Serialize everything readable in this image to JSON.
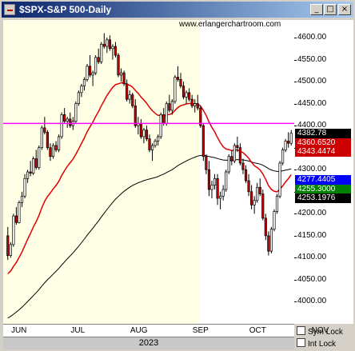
{
  "window": {
    "title": "$SPX-S&P 500-Daily",
    "minimize_glyph": "_",
    "maximize_glyph": "□",
    "close_glyph": "×"
  },
  "watermark": "www.erlangerchartroom.com",
  "colors": {
    "background_past": "#ffffe6",
    "background_recent": "#ffffff",
    "candle_up": "#ffffff",
    "candle_down": "#cc0000",
    "ma_short": "#e00000",
    "ma_long": "#000000",
    "horizontal_line": "#ff00ff"
  },
  "price_tags": [
    {
      "label": "4382.78",
      "price": 4382.78,
      "bg": "#000000"
    },
    {
      "label": "4360.6520",
      "price": 4360.652,
      "bg": "#cc0000"
    },
    {
      "label": "4343.4474",
      "price": 4343.4474,
      "bg": "#cc0000"
    },
    {
      "label": "4277.4405",
      "price": 4277.4405,
      "bg": "#0000ff"
    },
    {
      "label": "4255.3000",
      "price": 4255.3,
      "bg": "#008000"
    },
    {
      "label": "4253.1976",
      "price": 4253.1976,
      "bg": "#000000"
    }
  ],
  "legend_options": [
    {
      "label": "Sym Lock"
    },
    {
      "label": "Int Lock"
    }
  ],
  "chart_data": {
    "type": "candlestick",
    "title": "$SPX-S&P 500-Daily",
    "xlabel": "2023",
    "ylim": [
      3950,
      4640
    ],
    "y_ticks": [
      4000,
      4050,
      4100,
      4150,
      4200,
      4250,
      4300,
      4350,
      4400,
      4450,
      4500,
      4550,
      4600
    ],
    "y_tick_labels": [
      "4000.00",
      "4050.00",
      "4100.00",
      "4150.00",
      "4200.00",
      "4250.00",
      "4300.00",
      "4350.00",
      "4400.00",
      "4450.00",
      "4500.00",
      "4550.00",
      "4600.00"
    ],
    "x_months": [
      {
        "label": "JUN",
        "index": 4
      },
      {
        "label": "JUL",
        "index": 25
      },
      {
        "label": "AUG",
        "index": 46
      },
      {
        "label": "SEP",
        "index": 68
      },
      {
        "label": "OCT",
        "index": 88
      },
      {
        "label": "NOV",
        "index": 110
      }
    ],
    "year_label": "2023",
    "highlight_start_index": 68,
    "horizontal_line": 4405,
    "candles": [
      [
        4150,
        4170,
        4095,
        4105
      ],
      [
        4105,
        4135,
        4100,
        4130
      ],
      [
        4130,
        4200,
        4125,
        4195
      ],
      [
        4195,
        4215,
        4175,
        4180
      ],
      [
        4180,
        4230,
        4178,
        4225
      ],
      [
        4225,
        4250,
        4215,
        4240
      ],
      [
        4240,
        4290,
        4235,
        4280
      ],
      [
        4280,
        4300,
        4270,
        4295
      ],
      [
        4295,
        4320,
        4285,
        4292
      ],
      [
        4292,
        4330,
        4288,
        4325
      ],
      [
        4325,
        4345,
        4300,
        4305
      ],
      [
        4305,
        4355,
        4300,
        4350
      ],
      [
        4350,
        4400,
        4345,
        4395
      ],
      [
        4395,
        4420,
        4380,
        4385
      ],
      [
        4385,
        4390,
        4345,
        4350
      ],
      [
        4350,
        4360,
        4320,
        4330
      ],
      [
        4330,
        4360,
        4325,
        4355
      ],
      [
        4355,
        4365,
        4340,
        4345
      ],
      [
        4345,
        4380,
        4340,
        4375
      ],
      [
        4375,
        4430,
        4370,
        4425
      ],
      [
        4425,
        4440,
        4405,
        4410
      ],
      [
        4410,
        4420,
        4395,
        4415
      ],
      [
        4415,
        4430,
        4395,
        4400
      ],
      [
        4400,
        4420,
        4390,
        4410
      ],
      [
        4410,
        4455,
        4405,
        4450
      ],
      [
        4450,
        4480,
        4445,
        4475
      ],
      [
        4475,
        4495,
        4465,
        4490
      ],
      [
        4490,
        4510,
        4480,
        4505
      ],
      [
        4505,
        4540,
        4500,
        4535
      ],
      [
        4535,
        4560,
        4510,
        4515
      ],
      [
        4515,
        4525,
        4490,
        4520
      ],
      [
        4520,
        4560,
        4515,
        4555
      ],
      [
        4555,
        4575,
        4540,
        4545
      ],
      [
        4545,
        4590,
        4540,
        4585
      ],
      [
        4585,
        4610,
        4575,
        4580
      ],
      [
        4580,
        4600,
        4565,
        4595
      ],
      [
        4595,
        4605,
        4570,
        4575
      ],
      [
        4575,
        4585,
        4550,
        4580
      ],
      [
        4580,
        4590,
        4555,
        4560
      ],
      [
        4560,
        4565,
        4510,
        4515
      ],
      [
        4515,
        4530,
        4500,
        4520
      ],
      [
        4520,
        4525,
        4490,
        4495
      ],
      [
        4495,
        4505,
        4455,
        4460
      ],
      [
        4460,
        4480,
        4450,
        4470
      ],
      [
        4470,
        4475,
        4440,
        4445
      ],
      [
        4445,
        4460,
        4395,
        4400
      ],
      [
        4400,
        4420,
        4380,
        4405
      ],
      [
        4405,
        4415,
        4370,
        4375
      ],
      [
        4375,
        4395,
        4360,
        4390
      ],
      [
        4390,
        4400,
        4365,
        4370
      ],
      [
        4370,
        4380,
        4340,
        4345
      ],
      [
        4345,
        4360,
        4320,
        4355
      ],
      [
        4355,
        4370,
        4350,
        4365
      ],
      [
        4365,
        4380,
        4355,
        4375
      ],
      [
        4375,
        4430,
        4370,
        4425
      ],
      [
        4425,
        4440,
        4400,
        4405
      ],
      [
        4405,
        4455,
        4400,
        4450
      ],
      [
        4450,
        4470,
        4430,
        4435
      ],
      [
        4435,
        4460,
        4425,
        4455
      ],
      [
        4455,
        4515,
        4450,
        4510
      ],
      [
        4510,
        4535,
        4500,
        4505
      ],
      [
        4505,
        4520,
        4485,
        4490
      ],
      [
        4490,
        4500,
        4460,
        4465
      ],
      [
        4465,
        4480,
        4450,
        4475
      ],
      [
        4475,
        4485,
        4455,
        4460
      ],
      [
        4460,
        4470,
        4440,
        4445
      ],
      [
        4445,
        4460,
        4430,
        4450
      ],
      [
        4450,
        4470,
        4435,
        4440
      ],
      [
        4440,
        4445,
        4395,
        4400
      ],
      [
        4400,
        4405,
        4320,
        4330
      ],
      [
        4330,
        4335,
        4290,
        4300
      ],
      [
        4300,
        4320,
        4240,
        4255
      ],
      [
        4255,
        4275,
        4235,
        4265
      ],
      [
        4265,
        4290,
        4255,
        4280
      ],
      [
        4280,
        4290,
        4220,
        4235
      ],
      [
        4235,
        4250,
        4210,
        4240
      ],
      [
        4240,
        4265,
        4230,
        4255
      ],
      [
        4255,
        4300,
        4250,
        4295
      ],
      [
        4295,
        4335,
        4290,
        4330
      ],
      [
        4330,
        4345,
        4310,
        4320
      ],
      [
        4320,
        4360,
        4315,
        4355
      ],
      [
        4355,
        4375,
        4340,
        4350
      ],
      [
        4350,
        4360,
        4310,
        4315
      ],
      [
        4315,
        4325,
        4290,
        4300
      ],
      [
        4300,
        4310,
        4270,
        4275
      ],
      [
        4275,
        4290,
        4240,
        4250
      ],
      [
        4250,
        4265,
        4210,
        4220
      ],
      [
        4220,
        4240,
        4200,
        4230
      ],
      [
        4230,
        4270,
        4225,
        4260
      ],
      [
        4260,
        4280,
        4240,
        4245
      ],
      [
        4245,
        4255,
        4185,
        4190
      ],
      [
        4190,
        4200,
        4140,
        4150
      ],
      [
        4150,
        4160,
        4105,
        4115
      ],
      [
        4115,
        4170,
        4110,
        4165
      ],
      [
        4165,
        4210,
        4160,
        4205
      ],
      [
        4205,
        4245,
        4200,
        4240
      ],
      [
        4240,
        4320,
        4235,
        4315
      ],
      [
        4315,
        4350,
        4310,
        4345
      ],
      [
        4345,
        4370,
        4340,
        4365
      ],
      [
        4365,
        4385,
        4350,
        4360
      ],
      [
        4360,
        4390,
        4355,
        4383
      ]
    ]
  }
}
